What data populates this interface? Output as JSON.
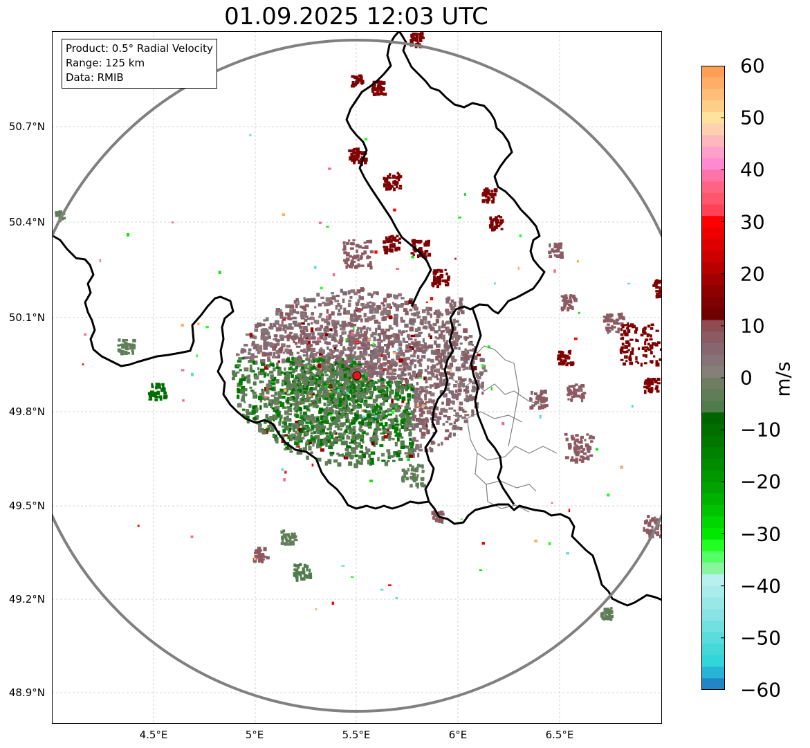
{
  "title": "01.09.2025 12:03 UTC",
  "info": {
    "product": "Product: 0.5° Radial Velocity",
    "range": "Range: 125 km",
    "data": "Data: RMIB"
  },
  "axes": {
    "lon_ticks": [
      "4.5°E",
      "5°E",
      "5.5°E",
      "6°E",
      "6.5°E"
    ],
    "lat_ticks": [
      "50.7°N",
      "50.4°N",
      "50.1°N",
      "49.8°N",
      "49.5°N",
      "49.2°N",
      "48.9°N"
    ],
    "lon_values": [
      4.5,
      5.0,
      5.5,
      6.0,
      6.5
    ],
    "lat_values": [
      50.7,
      50.4,
      50.1,
      49.8,
      49.5,
      49.2,
      48.9
    ],
    "lon_range": [
      4.0,
      7.0
    ],
    "lat_range": [
      48.8,
      51.0
    ]
  },
  "radar": {
    "lon": 5.51,
    "lat": 49.915,
    "range_km": 125,
    "site_color": "#e8141b"
  },
  "colorbar": {
    "label": "m/s",
    "ticks": [
      "60",
      "50",
      "40",
      "30",
      "20",
      "10",
      "0",
      "−10",
      "−20",
      "−30",
      "−40",
      "−50",
      "−60"
    ],
    "tick_values": [
      60,
      50,
      40,
      30,
      20,
      10,
      0,
      -10,
      -20,
      -30,
      -40,
      -50,
      -60
    ],
    "min": -60,
    "max": 60,
    "colors_top_to_bottom": [
      "#ff9e55",
      "#ffad67",
      "#ffbd7a",
      "#ffcf89",
      "#ffe39d",
      "#ffd1b0",
      "#ffb7be",
      "#ff9fcc",
      "#ff8ad1",
      "#ff72a8",
      "#ff6384",
      "#ff566e",
      "#ff4255",
      "#ff0000",
      "#ee0000",
      "#dd0000",
      "#cc0000",
      "#b80000",
      "#a30000",
      "#900000",
      "#7e0000",
      "#6e0000",
      "#8e4b50",
      "#8c5a62",
      "#886670",
      "#857378",
      "#848079",
      "#6f7d63",
      "#5f7e58",
      "#4f7c4a",
      "#006400",
      "#006e00",
      "#007800",
      "#008200",
      "#008c00",
      "#009700",
      "#00a300",
      "#00b200",
      "#00c300",
      "#00d600",
      "#00e800",
      "#22ff22",
      "#55ff66",
      "#88f5a0",
      "#b8f0f0",
      "#a8ecec",
      "#98e8e8",
      "#88e4e4",
      "#70e0e0",
      "#5adcdc",
      "#44d8d8",
      "#30d6dc",
      "#28b4d4",
      "#2384c6"
    ]
  },
  "map_colors": {
    "border": "#000000",
    "range_ring": "#808080",
    "province": "#808080",
    "grid": "#c8c8c8"
  }
}
